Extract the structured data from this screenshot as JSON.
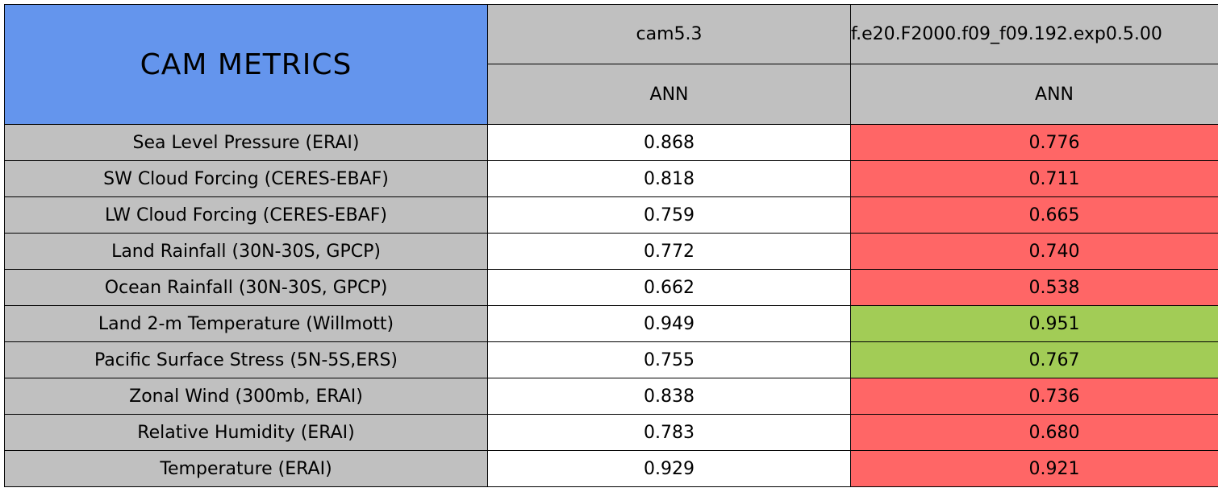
{
  "header": {
    "title": "CAM METRICS",
    "title_color": "#6495ed",
    "header_color": "#c0c0c0",
    "columns": [
      {
        "name": "cam5.3",
        "season": "ANN"
      },
      {
        "name": "f.e20.F2000.f09_f09.192.exp0.5.00",
        "season": "ANN"
      }
    ]
  },
  "table": {
    "label_color": "#c0c0c0",
    "rows": [
      {
        "metric": "Sea Level Pressure (ERAI)",
        "values": [
          "0.868",
          "0.776"
        ],
        "colors": [
          "#ffffff",
          "#ff6666"
        ]
      },
      {
        "metric": "SW Cloud Forcing (CERES-EBAF)",
        "values": [
          "0.818",
          "0.711"
        ],
        "colors": [
          "#ffffff",
          "#ff6666"
        ]
      },
      {
        "metric": "LW Cloud Forcing (CERES-EBAF)",
        "values": [
          "0.759",
          "0.665"
        ],
        "colors": [
          "#ffffff",
          "#ff6666"
        ]
      },
      {
        "metric": "Land Rainfall (30N-30S, GPCP)",
        "values": [
          "0.772",
          "0.740"
        ],
        "colors": [
          "#ffffff",
          "#ff6666"
        ]
      },
      {
        "metric": "Ocean Rainfall (30N-30S, GPCP)",
        "values": [
          "0.662",
          "0.538"
        ],
        "colors": [
          "#ffffff",
          "#ff6666"
        ]
      },
      {
        "metric": "Land 2-m Temperature (Willmott)",
        "values": [
          "0.949",
          "0.951"
        ],
        "colors": [
          "#ffffff",
          "#a2cc56"
        ]
      },
      {
        "metric": "Pacific Surface Stress (5N-5S,ERS)",
        "values": [
          "0.755",
          "0.767"
        ],
        "colors": [
          "#ffffff",
          "#a2cc56"
        ]
      },
      {
        "metric": "Zonal Wind (300mb, ERAI)",
        "values": [
          "0.838",
          "0.736"
        ],
        "colors": [
          "#ffffff",
          "#ff6666"
        ]
      },
      {
        "metric": "Relative Humidity (ERAI)",
        "values": [
          "0.783",
          "0.680"
        ],
        "colors": [
          "#ffffff",
          "#ff6666"
        ]
      },
      {
        "metric": "Temperature (ERAI)",
        "values": [
          "0.929",
          "0.921"
        ],
        "colors": [
          "#ffffff",
          "#ff6666"
        ]
      }
    ]
  }
}
